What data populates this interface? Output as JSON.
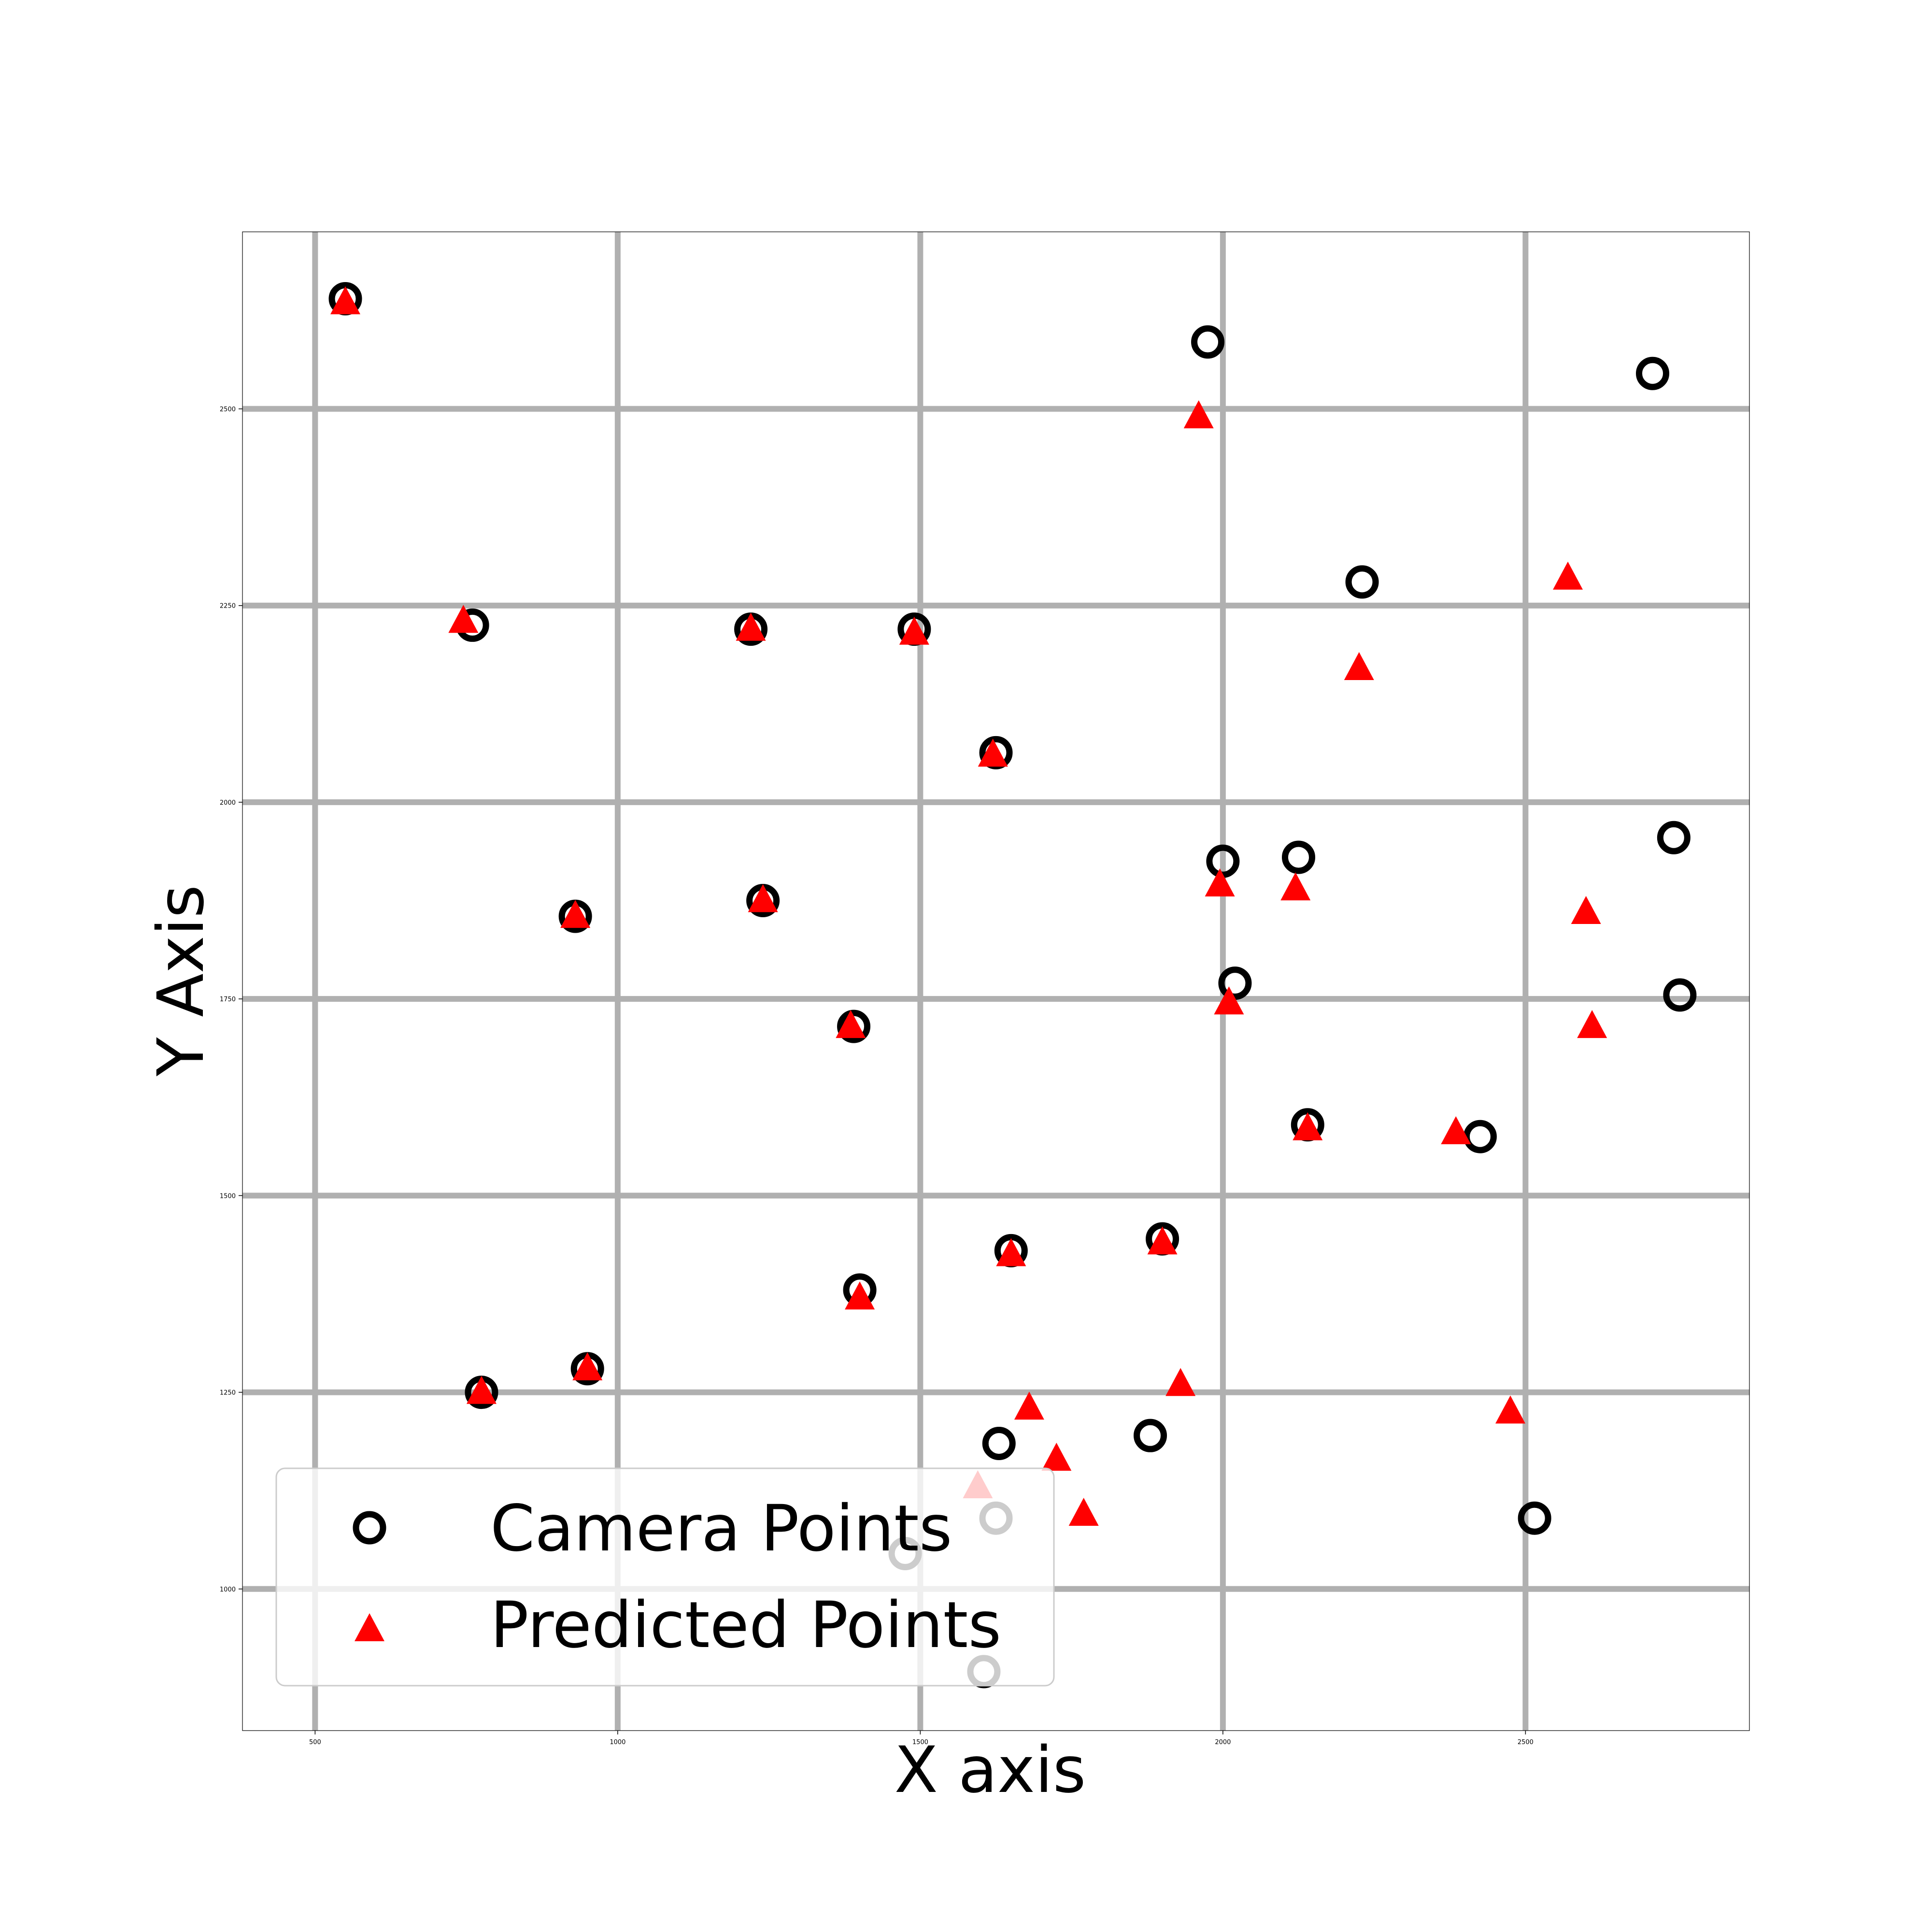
{
  "chart_data": {
    "type": "scatter",
    "title": "",
    "xlabel": "X axis",
    "ylabel": "Y Axis",
    "xlim": [
      380,
      2870
    ],
    "ylim": [
      820,
      2725
    ],
    "xticks": [
      500,
      1000,
      1500,
      2000,
      2500
    ],
    "yticks": [
      1000,
      1250,
      1500,
      1750,
      2000,
      2250,
      2500
    ],
    "grid": true,
    "legend_position": "lower-left",
    "series": [
      {
        "name": "Camera Points",
        "marker": "circle-open",
        "color": "#000000",
        "points": [
          [
            550,
            2640
          ],
          [
            760,
            2225
          ],
          [
            1220,
            2220
          ],
          [
            1490,
            2220
          ],
          [
            1625,
            2063
          ],
          [
            930,
            1855
          ],
          [
            1240,
            1875
          ],
          [
            1390,
            1715
          ],
          [
            1975,
            2585
          ],
          [
            2710,
            2545
          ],
          [
            2230,
            2280
          ],
          [
            2000,
            1925
          ],
          [
            2125,
            1930
          ],
          [
            2745,
            1955
          ],
          [
            2020,
            1770
          ],
          [
            2755,
            1755
          ],
          [
            2140,
            1590
          ],
          [
            2425,
            1575
          ],
          [
            1650,
            1430
          ],
          [
            1900,
            1445
          ],
          [
            1400,
            1380
          ],
          [
            950,
            1280
          ],
          [
            775,
            1250
          ],
          [
            1630,
            1185
          ],
          [
            1880,
            1195
          ],
          [
            1625,
            1090
          ],
          [
            1475,
            1045
          ],
          [
            1605,
            895
          ],
          [
            2515,
            1090
          ]
        ]
      },
      {
        "name": "Predicted Points",
        "marker": "triangle",
        "color": "#ff0000",
        "points": [
          [
            550,
            2635
          ],
          [
            745,
            2230
          ],
          [
            1220,
            2220
          ],
          [
            1490,
            2215
          ],
          [
            1620,
            2060
          ],
          [
            930,
            1855
          ],
          [
            1240,
            1875
          ],
          [
            1385,
            1715
          ],
          [
            1960,
            2490
          ],
          [
            2570,
            2285
          ],
          [
            2225,
            2170
          ],
          [
            1995,
            1895
          ],
          [
            2120,
            1890
          ],
          [
            2600,
            1860
          ],
          [
            2010,
            1745
          ],
          [
            2610,
            1715
          ],
          [
            2140,
            1585
          ],
          [
            2385,
            1580
          ],
          [
            1650,
            1425
          ],
          [
            1900,
            1440
          ],
          [
            1400,
            1370
          ],
          [
            950,
            1280
          ],
          [
            775,
            1250
          ],
          [
            1680,
            1230
          ],
          [
            1930,
            1260
          ],
          [
            1725,
            1165
          ],
          [
            1595,
            1130
          ],
          [
            1770,
            1095
          ],
          [
            2475,
            1225
          ]
        ]
      }
    ]
  }
}
